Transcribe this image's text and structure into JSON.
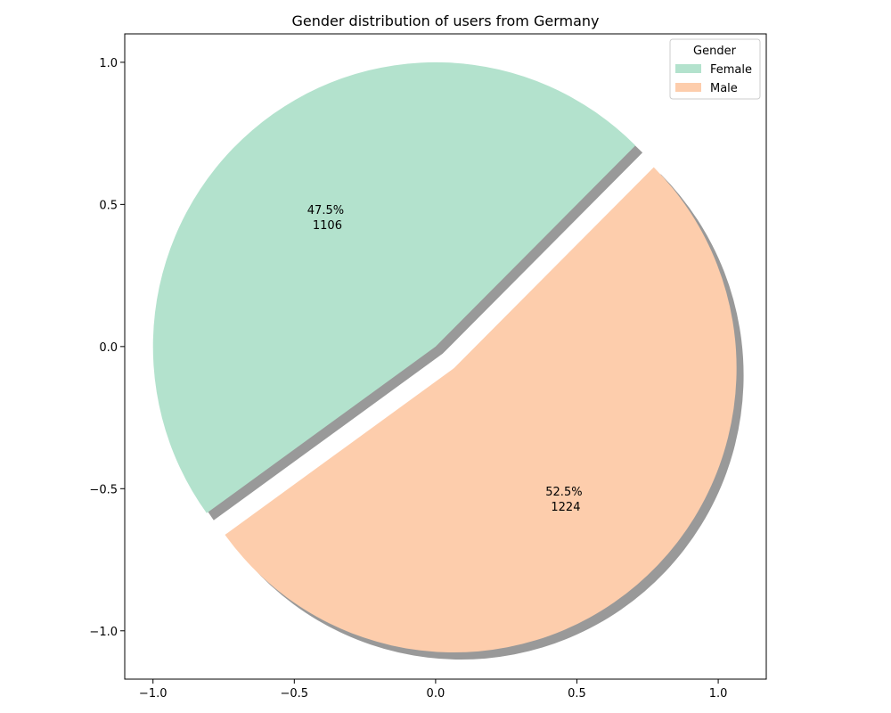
{
  "chart_data": {
    "type": "pie",
    "title": "Gender distribution of users from Germany",
    "categories": [
      "Female",
      "Male"
    ],
    "values": [
      1106,
      1224
    ],
    "percent_labels": [
      "47.5%",
      "52.5%"
    ],
    "count_labels": [
      "1106",
      "1224"
    ],
    "colors": [
      "#b3e2cd",
      "#fdcdac"
    ],
    "start_angle_deg": 45,
    "counterclock": true,
    "explode": [
      0,
      0.1
    ],
    "shadow": true,
    "legend": {
      "title": "Gender",
      "entries": [
        "Female",
        "Male"
      ],
      "placement": "top-right"
    },
    "xlim": [
      -1.1,
      1.17
    ],
    "ylim": [
      -1.17,
      1.1
    ],
    "xticks": [
      -1.0,
      -0.5,
      0.0,
      0.5,
      1.0
    ],
    "yticks": [
      -1.0,
      -0.5,
      0.0,
      0.5,
      1.0
    ],
    "xtick_labels": [
      "−1.0",
      "−0.5",
      "0.0",
      "0.5",
      "1.0"
    ],
    "ytick_labels": [
      "−1.0",
      "−0.5",
      "0.0",
      "0.5",
      "1.0"
    ],
    "grid": false
  }
}
